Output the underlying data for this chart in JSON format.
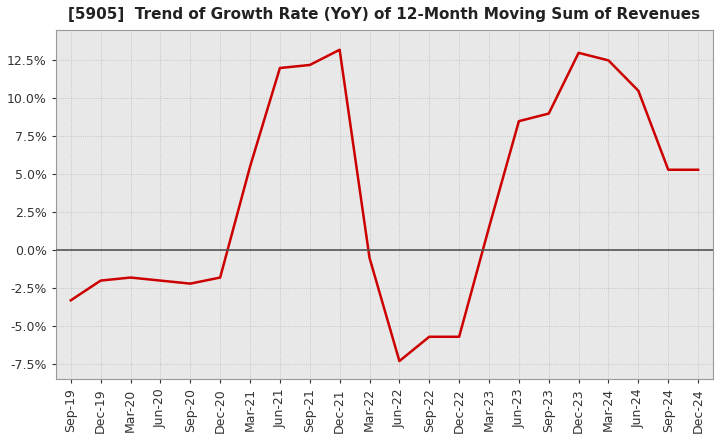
{
  "title": "[5905]  Trend of Growth Rate (YoY) of 12-Month Moving Sum of Revenues",
  "line_color": "#CC0000",
  "line_width": 1.8,
  "background_color": "#FFFFFF",
  "plot_bg_color": "#E8E8E8",
  "grid_color": "#BBBBBB",
  "ylim": [
    -0.085,
    0.145
  ],
  "yticks": [
    -0.075,
    -0.05,
    -0.025,
    0.0,
    0.025,
    0.05,
    0.075,
    0.1,
    0.125
  ],
  "x_labels": [
    "Sep-19",
    "Dec-19",
    "Mar-20",
    "Jun-20",
    "Sep-20",
    "Dec-20",
    "Mar-21",
    "Jun-21",
    "Sep-21",
    "Dec-21",
    "Mar-22",
    "Jun-22",
    "Sep-22",
    "Dec-22",
    "Mar-23",
    "Jun-23",
    "Sep-23",
    "Dec-23",
    "Mar-24",
    "Jun-24",
    "Sep-24",
    "Dec-24"
  ],
  "y_values": [
    -0.033,
    -0.02,
    -0.018,
    -0.02,
    -0.022,
    -0.018,
    0.055,
    0.12,
    0.122,
    0.132,
    -0.005,
    -0.073,
    -0.057,
    -0.057,
    0.015,
    0.085,
    0.09,
    0.13,
    0.125,
    0.105,
    0.053,
    0.053
  ],
  "title_fontsize": 11,
  "tick_fontsize": 9,
  "title_color": "#222222"
}
